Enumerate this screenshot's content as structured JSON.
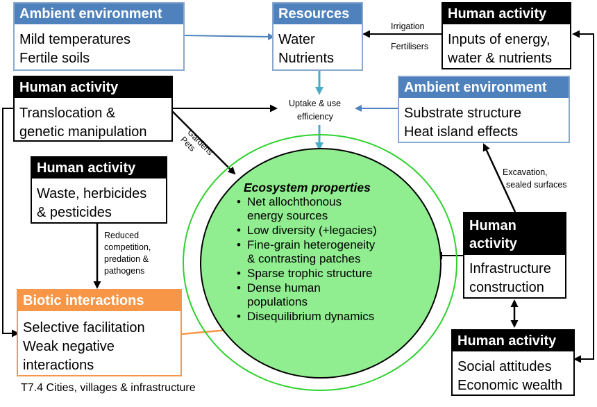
{
  "ambient_top": {
    "header": "Ambient environment",
    "lines": [
      "Mild temperatures",
      "Fertile soils"
    ]
  },
  "resources": {
    "header": "Resources",
    "lines": [
      "Water",
      "Nutrients"
    ]
  },
  "human_inputs": {
    "header": "Human activity",
    "lines": [
      "Inputs of energy,",
      "water & nutrients"
    ]
  },
  "human_translocation": {
    "header": "Human activity",
    "lines": [
      "Translocation &",
      "genetic manipulation"
    ]
  },
  "ambient_right": {
    "header": "Ambient environment",
    "lines": [
      "Substrate structure",
      "Heat island effects"
    ]
  },
  "human_waste": {
    "header": "Human activity",
    "lines": [
      "Waste, herbicides",
      "& pesticides"
    ]
  },
  "human_infrastructure": {
    "header_lines": [
      "Human",
      "activity"
    ],
    "lines": [
      "Infrastructure",
      "construction"
    ]
  },
  "biotic": {
    "header": "Biotic interactions",
    "lines": [
      "Selective facilitation",
      "Weak negative",
      "interactions"
    ]
  },
  "human_social": {
    "header": "Human activity",
    "lines": [
      "Social attitudes",
      "Economic wealth"
    ]
  },
  "labels": {
    "irrigation": "Irrigation",
    "fertilisers": "Fertilisers",
    "uptake": [
      "Uptake & use",
      "efficiency"
    ],
    "gardens": "Gardens",
    "pets": "Pets",
    "excavation": [
      "Excavation,",
      "sealed surfaces"
    ],
    "reduced": [
      "Reduced",
      "competition,",
      "predation &",
      "pathogens"
    ]
  },
  "ecosystem": {
    "title": "Ecosystem properties",
    "items": [
      [
        "Net allochthonous",
        "energy sources"
      ],
      [
        "Low diversity (+legacies)"
      ],
      [
        "Fine-grain heterogeneity",
        "& contrasting patches"
      ],
      [
        "Sparse trophic structure"
      ],
      [
        "Dense human",
        "populations"
      ],
      [
        "Disequilibrium dynamics"
      ]
    ]
  },
  "caption": "T7.4 Cities, villages & infrastructure",
  "colors": {
    "ambient": "#4f81bd",
    "human": "#000000",
    "biotic": "#f79646",
    "ecosystem_fill": "#90ee90",
    "ecosystem_ring": "#2ed12e",
    "resource_arrow": "#4bacc6"
  }
}
